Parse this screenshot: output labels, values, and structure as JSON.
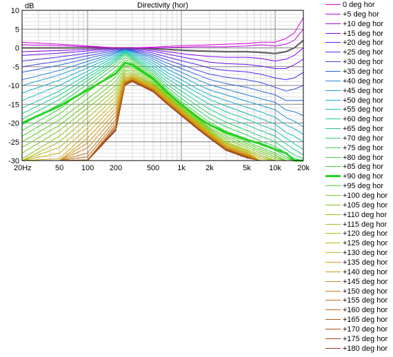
{
  "chart_data": {
    "type": "line",
    "title": "Directivity (hor)",
    "ylabel": "dB",
    "xlabel": "",
    "xscale": "log",
    "xlim": [
      20,
      20000
    ],
    "ylim": [
      -30,
      10
    ],
    "grid": true,
    "legend_position": "right",
    "x_ticks": [
      {
        "value": 20,
        "label": "20Hz"
      },
      {
        "value": 50,
        "label": "50"
      },
      {
        "value": 100,
        "label": "100"
      },
      {
        "value": 200,
        "label": "200"
      },
      {
        "value": 500,
        "label": "500"
      },
      {
        "value": 1000,
        "label": "1k"
      },
      {
        "value": 2000,
        "label": "2k"
      },
      {
        "value": 5000,
        "label": "5k"
      },
      {
        "value": 10000,
        "label": "10k"
      },
      {
        "value": 20000,
        "label": "20k"
      }
    ],
    "y_ticks": [
      {
        "value": 10,
        "label": "10"
      },
      {
        "value": 5,
        "label": "5"
      },
      {
        "value": 0,
        "label": "0"
      },
      {
        "value": -5,
        "label": "-5"
      },
      {
        "value": -10,
        "label": "-10"
      },
      {
        "value": -15,
        "label": "-15"
      },
      {
        "value": -20,
        "label": "-20"
      },
      {
        "value": -25,
        "label": "-25"
      },
      {
        "value": -30,
        "label": "-30"
      }
    ],
    "x": [
      20,
      50,
      100,
      200,
      250,
      300,
      500,
      700,
      1000,
      1500,
      2000,
      3000,
      5000,
      7000,
      10000,
      13000,
      16000,
      20000
    ],
    "series": [
      {
        "name": "0 deg hor",
        "color": "#d400d4",
        "values": [
          1.5,
          1.0,
          0.5,
          0.0,
          0.0,
          0.0,
          0.2,
          0.4,
          0.6,
          0.7,
          0.8,
          1.0,
          1.2,
          1.5,
          1.5,
          2.5,
          4.0,
          8.0
        ]
      },
      {
        "name": "+5 deg hor",
        "color": "#ba00e6",
        "values": [
          0.8,
          0.6,
          0.3,
          0.0,
          0.0,
          0.0,
          0.0,
          0.1,
          0.2,
          0.3,
          0.3,
          0.3,
          0.5,
          0.8,
          0.5,
          1.0,
          2.0,
          5.0
        ]
      },
      {
        "name": "+10 deg hor",
        "color": "#9f00ec",
        "values": [
          0.0,
          0.0,
          0.0,
          0.0,
          0.0,
          0.0,
          -0.2,
          -0.4,
          -0.6,
          -0.8,
          -0.9,
          -1.0,
          -1.0,
          -1.2,
          -1.5,
          -1.0,
          0.0,
          2.0
        ]
      },
      {
        "name": "+15 deg hor",
        "color": "#8400f0",
        "values": [
          -1.0,
          -0.7,
          -0.4,
          -0.1,
          0.0,
          -0.1,
          -0.5,
          -1.0,
          -1.5,
          -2.0,
          -2.3,
          -2.5,
          -2.5,
          -2.8,
          -3.5,
          -3.0,
          -2.0,
          0.0
        ]
      },
      {
        "name": "+20 deg hor",
        "color": "#6a10ee",
        "values": [
          -2.0,
          -1.4,
          -0.8,
          -0.2,
          0.0,
          -0.2,
          -0.9,
          -1.6,
          -2.4,
          -3.2,
          -3.8,
          -4.2,
          -4.4,
          -4.8,
          -5.5,
          -5.5,
          -4.5,
          -3.0
        ]
      },
      {
        "name": "+25 deg hor",
        "color": "#5028ea",
        "values": [
          -3.5,
          -2.4,
          -1.4,
          -0.4,
          -0.1,
          -0.4,
          -1.4,
          -2.4,
          -3.4,
          -4.5,
          -5.4,
          -6.0,
          -6.4,
          -7.0,
          -8.0,
          -8.5,
          -8.0,
          -6.5
        ]
      },
      {
        "name": "+30 deg hor",
        "color": "#3a44e4",
        "values": [
          -5.0,
          -3.5,
          -2.1,
          -0.7,
          -0.2,
          -0.6,
          -1.9,
          -3.2,
          -4.5,
          -6.0,
          -7.0,
          -7.8,
          -8.5,
          -9.2,
          -10.5,
          -11.5,
          -11.0,
          -10.0
        ]
      },
      {
        "name": "+35 deg hor",
        "color": "#2862e0",
        "values": [
          -6.5,
          -4.6,
          -2.8,
          -1.0,
          -0.3,
          -0.8,
          -2.4,
          -4.0,
          -5.5,
          -7.2,
          -8.4,
          -9.5,
          -10.5,
          -11.5,
          -12.5,
          -14.0,
          -14.0,
          -14.0
        ]
      },
      {
        "name": "+40 deg hor",
        "color": "#1c80d8",
        "values": [
          -8.5,
          -6.0,
          -3.6,
          -1.3,
          -0.4,
          -1.0,
          -2.9,
          -4.8,
          -6.5,
          -8.5,
          -9.8,
          -11.0,
          -12.5,
          -13.5,
          -14.5,
          -16.5,
          -17.0,
          -18.0
        ]
      },
      {
        "name": "+45 deg hor",
        "color": "#149cd0",
        "values": [
          -10.0,
          -7.2,
          -4.4,
          -1.6,
          -0.5,
          -1.3,
          -3.5,
          -5.6,
          -7.5,
          -9.8,
          -11.2,
          -12.5,
          -14.2,
          -15.3,
          -16.5,
          -18.5,
          -19.5,
          -21.0
        ]
      },
      {
        "name": "+50 deg hor",
        "color": "#10b0c4",
        "values": [
          -12.0,
          -8.6,
          -5.3,
          -2.0,
          -0.7,
          -1.6,
          -4.1,
          -6.5,
          -8.5,
          -11.0,
          -12.5,
          -14.0,
          -15.8,
          -17.0,
          -18.5,
          -20.5,
          -21.5,
          -23.0
        ]
      },
      {
        "name": "+55 deg hor",
        "color": "#10c0b4",
        "values": [
          -14.0,
          -10.0,
          -6.2,
          -2.4,
          -0.9,
          -1.9,
          -4.7,
          -7.3,
          -9.5,
          -12.0,
          -13.7,
          -15.5,
          -17.5,
          -18.8,
          -20.3,
          -22.5,
          -23.5,
          -25.0
        ]
      },
      {
        "name": "+60 deg hor",
        "color": "#14c8a0",
        "values": [
          -16.0,
          -11.5,
          -7.1,
          -2.8,
          -1.1,
          -2.2,
          -5.3,
          -8.1,
          -10.5,
          -13.2,
          -15.0,
          -17.0,
          -19.0,
          -20.5,
          -22.0,
          -24.0,
          -25.5,
          -27.0
        ]
      },
      {
        "name": "+65 deg hor",
        "color": "#1ccc88",
        "values": [
          -17.5,
          -12.6,
          -7.9,
          -3.2,
          -1.3,
          -2.5,
          -5.9,
          -8.9,
          -11.5,
          -14.4,
          -16.3,
          -18.5,
          -20.5,
          -22.0,
          -23.5,
          -25.5,
          -27.0,
          -28.5
        ]
      },
      {
        "name": "+70 deg hor",
        "color": "#26ce70",
        "values": [
          -19.0,
          -13.8,
          -8.7,
          -3.6,
          -1.6,
          -2.8,
          -6.4,
          -9.7,
          -12.5,
          -15.5,
          -17.6,
          -19.8,
          -22.0,
          -23.5,
          -25.0,
          -27.0,
          -28.5,
          -29.5
        ]
      },
      {
        "name": "+75 deg hor",
        "color": "#30d05a",
        "values": [
          -20.5,
          -15.0,
          -9.6,
          -4.2,
          -2.0,
          -3.1,
          -6.9,
          -10.4,
          -13.5,
          -16.5,
          -18.8,
          -21.0,
          -23.2,
          -24.8,
          -26.2,
          -28.0,
          -29.5,
          -30.0
        ]
      },
      {
        "name": "+80 deg hor",
        "color": "#3cd040",
        "values": [
          -22.0,
          -16.3,
          -10.6,
          -5.0,
          -2.6,
          -3.5,
          -7.4,
          -11.0,
          -14.3,
          -17.5,
          -19.8,
          -22.2,
          -24.2,
          -25.8,
          -27.2,
          -29.0,
          -30.0,
          -30.0
        ]
      },
      {
        "name": "+85 deg hor",
        "color": "#48d02a",
        "values": [
          -23.5,
          -17.6,
          -11.8,
          -6.0,
          -3.3,
          -4.0,
          -7.8,
          -11.4,
          -14.8,
          -18.2,
          -20.6,
          -23.0,
          -25.0,
          -26.5,
          -28.0,
          -29.5,
          -30.0,
          -30.0
        ]
      },
      {
        "name": "+90 deg hor",
        "color": "#22d41a",
        "values": [
          -20.0,
          -15.5,
          -11.2,
          -6.8,
          -4.0,
          -4.5,
          -8.2,
          -11.8,
          -15.0,
          -18.5,
          -20.5,
          -22.5,
          -24.5,
          -25.5,
          -27.0,
          -28.0,
          -30.0,
          -30.0
        ]
      },
      {
        "name": "+95 deg hor",
        "color": "#58d020",
        "values": [
          -25.0,
          -19.2,
          -13.5,
          -7.8,
          -4.6,
          -5.0,
          -8.6,
          -12.0,
          -15.2,
          -18.8,
          -21.2,
          -23.5,
          -25.5,
          -27.0,
          -28.5,
          -30.0,
          -30.0,
          -30.0
        ]
      },
      {
        "name": "+100 deg hor",
        "color": "#6ccc1c",
        "values": [
          -26.5,
          -20.6,
          -14.8,
          -8.9,
          -5.2,
          -5.5,
          -9.0,
          -12.3,
          -15.5,
          -19.0,
          -21.5,
          -24.0,
          -26.0,
          -27.5,
          -29.0,
          -30.0,
          -30.0,
          -30.0
        ]
      },
      {
        "name": "+105 deg hor",
        "color": "#80c818",
        "values": [
          -28.0,
          -22.0,
          -16.0,
          -10.0,
          -5.8,
          -6.0,
          -9.3,
          -12.6,
          -15.8,
          -19.3,
          -21.8,
          -24.5,
          -26.5,
          -28.0,
          -29.5,
          -30.0,
          -30.0,
          -30.0
        ]
      },
      {
        "name": "+110 deg hor",
        "color": "#92c414",
        "values": [
          -29.5,
          -23.5,
          -17.3,
          -11.0,
          -6.3,
          -6.5,
          -9.6,
          -12.8,
          -16.0,
          -19.6,
          -22.0,
          -25.0,
          -27.0,
          -28.5,
          -30.0,
          -30.0,
          -30.0,
          -30.0
        ]
      },
      {
        "name": "+115 deg hor",
        "color": "#a4c014",
        "values": [
          -30.0,
          -25.0,
          -18.6,
          -12.0,
          -6.8,
          -6.9,
          -9.8,
          -13.0,
          -16.3,
          -19.8,
          -22.3,
          -25.3,
          -27.3,
          -29.0,
          -30.0,
          -30.0,
          -30.0,
          -30.0
        ]
      },
      {
        "name": "+120 deg hor",
        "color": "#b6bc14",
        "values": [
          -30.0,
          -26.5,
          -20.0,
          -13.0,
          -7.3,
          -7.2,
          -10.0,
          -13.2,
          -16.5,
          -20.0,
          -22.5,
          -25.5,
          -27.5,
          -29.5,
          -30.0,
          -30.0,
          -30.0,
          -30.0
        ]
      },
      {
        "name": "+125 deg hor",
        "color": "#c4b414",
        "values": [
          -30.0,
          -28.0,
          -21.3,
          -14.0,
          -7.7,
          -7.5,
          -10.2,
          -13.4,
          -16.7,
          -20.2,
          -22.7,
          -25.8,
          -27.8,
          -30.0,
          -30.0,
          -30.0,
          -30.0,
          -30.0
        ]
      },
      {
        "name": "+130 deg hor",
        "color": "#ccac14",
        "values": [
          -30.0,
          -29.5,
          -22.6,
          -15.0,
          -8.0,
          -7.7,
          -10.4,
          -13.6,
          -16.9,
          -20.4,
          -22.9,
          -26.0,
          -28.0,
          -30.0,
          -30.0,
          -30.0,
          -30.0,
          -30.0
        ]
      },
      {
        "name": "+135 deg hor",
        "color": "#d0a014",
        "values": [
          -30.0,
          -30.0,
          -24.0,
          -16.0,
          -8.3,
          -7.9,
          -10.6,
          -13.8,
          -17.0,
          -20.6,
          -23.0,
          -26.2,
          -28.2,
          -30.0,
          -30.0,
          -30.0,
          -30.0,
          -30.0
        ]
      },
      {
        "name": "+140 deg hor",
        "color": "#d09414",
        "values": [
          -30.0,
          -30.0,
          -25.3,
          -17.0,
          -8.6,
          -8.1,
          -10.8,
          -14.0,
          -17.2,
          -20.8,
          -23.2,
          -26.4,
          -28.4,
          -30.0,
          -30.0,
          -30.0,
          -30.0,
          -30.0
        ]
      },
      {
        "name": "+145 deg hor",
        "color": "#cc8814",
        "values": [
          -30.0,
          -30.0,
          -26.6,
          -18.0,
          -8.9,
          -8.3,
          -11.0,
          -14.2,
          -17.4,
          -21.0,
          -23.4,
          -26.6,
          -28.6,
          -30.0,
          -30.0,
          -30.0,
          -30.0,
          -30.0
        ]
      },
      {
        "name": "+150 deg hor",
        "color": "#c47c14",
        "values": [
          -30.0,
          -30.0,
          -28.0,
          -19.0,
          -9.1,
          -8.4,
          -11.1,
          -14.3,
          -17.5,
          -21.1,
          -23.5,
          -26.7,
          -28.7,
          -30.0,
          -30.0,
          -30.0,
          -30.0,
          -30.0
        ]
      },
      {
        "name": "+155 deg hor",
        "color": "#bc7014",
        "values": [
          -30.0,
          -30.0,
          -29.0,
          -19.8,
          -9.3,
          -8.5,
          -11.2,
          -14.4,
          -17.6,
          -21.2,
          -23.6,
          -26.8,
          -28.8,
          -30.0,
          -30.0,
          -30.0,
          -30.0,
          -30.0
        ]
      },
      {
        "name": "+160 deg hor",
        "color": "#b46414",
        "values": [
          -30.0,
          -30.0,
          -29.8,
          -20.5,
          -9.5,
          -8.6,
          -11.3,
          -14.5,
          -17.7,
          -21.3,
          -23.7,
          -26.9,
          -28.9,
          -30.0,
          -30.0,
          -30.0,
          -30.0,
          -30.0
        ]
      },
      {
        "name": "+165 deg hor",
        "color": "#ac5814",
        "values": [
          -30.0,
          -30.0,
          -30.0,
          -21.0,
          -9.6,
          -8.7,
          -11.4,
          -14.6,
          -17.8,
          -21.4,
          -23.8,
          -27.0,
          -29.0,
          -30.0,
          -30.0,
          -30.0,
          -30.0,
          -30.0
        ]
      },
      {
        "name": "+170 deg hor",
        "color": "#a44c18",
        "values": [
          -30.0,
          -30.0,
          -30.0,
          -21.5,
          -9.7,
          -8.8,
          -11.5,
          -14.7,
          -17.9,
          -21.5,
          -23.9,
          -27.1,
          -29.1,
          -30.0,
          -30.0,
          -30.0,
          -30.0,
          -30.0
        ]
      },
      {
        "name": "+175 deg hor",
        "color": "#9c401c",
        "values": [
          -30.0,
          -30.0,
          -30.0,
          -21.8,
          -9.8,
          -8.9,
          -11.6,
          -14.8,
          -18.0,
          -21.6,
          -24.0,
          -27.2,
          -29.2,
          -30.0,
          -30.0,
          -30.0,
          -30.0,
          -30.0
        ]
      },
      {
        "name": "+180 deg hor",
        "color": "#943420",
        "values": [
          -30.0,
          -30.0,
          -30.0,
          -22.0,
          -9.9,
          -9.0,
          -11.7,
          -14.9,
          -18.1,
          -21.7,
          -24.1,
          -27.3,
          -29.3,
          -30.0,
          -30.0,
          -30.0,
          -30.0,
          -30.0
        ]
      }
    ],
    "highlight_series": [
      "+90 deg hor"
    ],
    "reference_series": [
      "+10 deg hor"
    ],
    "reference_color": "#606060"
  }
}
